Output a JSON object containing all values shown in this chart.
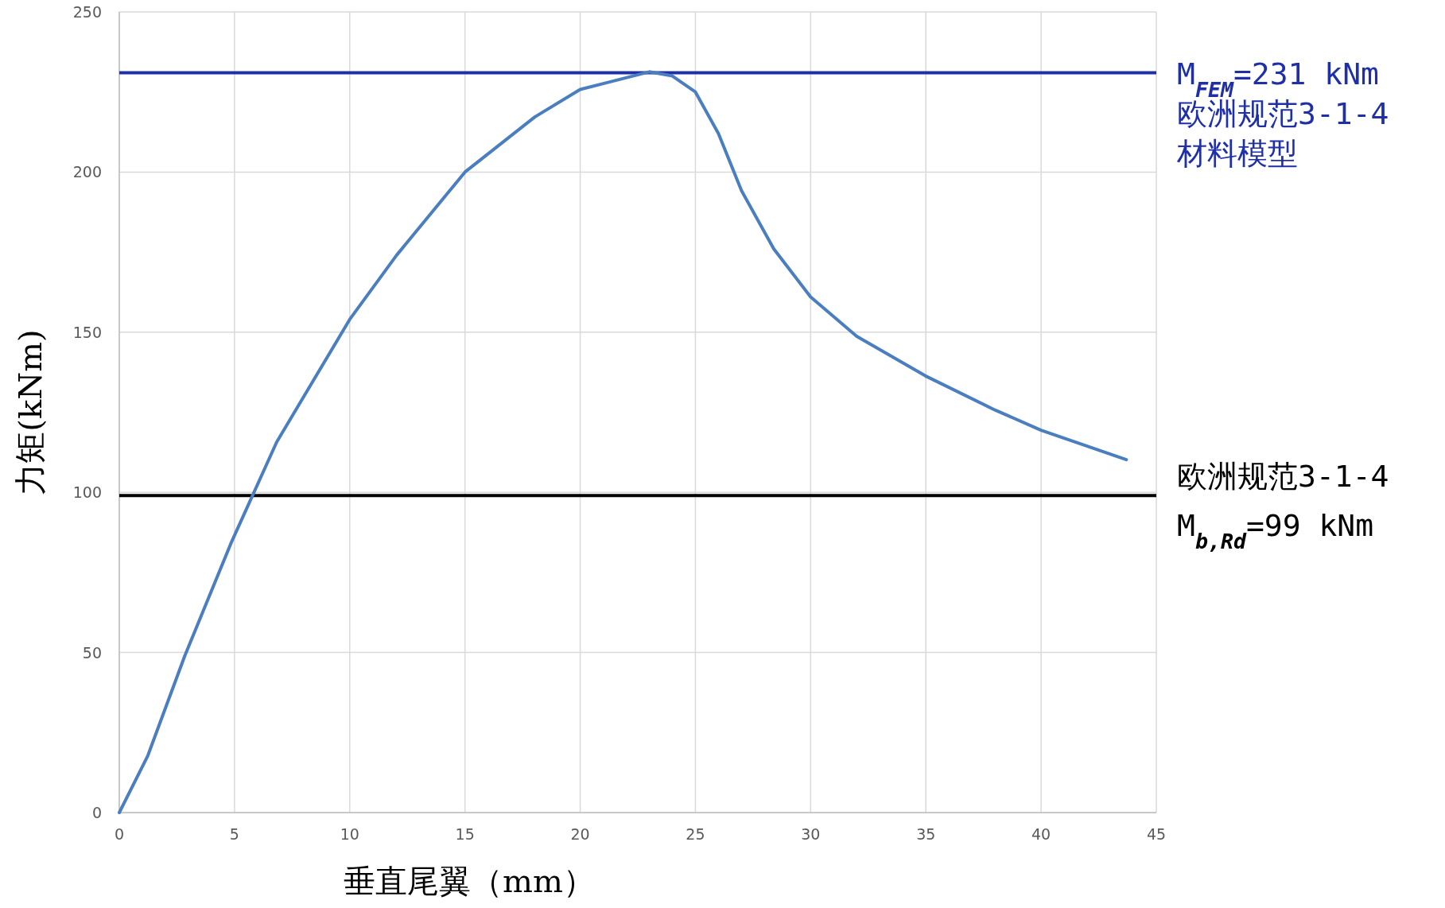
{
  "chart_data": {
    "type": "line",
    "xlabel": "垂直尾翼（mm）",
    "ylabel": "力矩(kNm)",
    "x": [
      0,
      1.24,
      2.84,
      4.84,
      6.83,
      10,
      12.03,
      15,
      18.03,
      20,
      23,
      24,
      25,
      26,
      27,
      28.4,
      30,
      32,
      34.97,
      38,
      40,
      43.7
    ],
    "series": [
      {
        "color": "#4a7ebf",
        "values": [
          0,
          17.8,
          48.9,
          84,
          115.7,
          154,
          174,
          200,
          217.2,
          225.8,
          231.3,
          230,
          225,
          212,
          194.2,
          176,
          161,
          148.7,
          136.4,
          125.7,
          119.4,
          110.2
        ]
      }
    ],
    "xlim": [
      0,
      45
    ],
    "xticks": [
      0,
      5,
      10,
      15,
      20,
      25,
      30,
      35,
      40,
      45
    ],
    "ylim": [
      0,
      250
    ],
    "yticks": [
      0,
      50,
      100,
      150,
      200,
      250
    ],
    "grid": true,
    "marker": "none",
    "line_style": "solid",
    "ref_lines": [
      {
        "axis": "y",
        "value": 231,
        "label": "M$_{FEM}$=231 kNm\n欧洲规范3-1-4\n材料模型",
        "color": "#1f2fa8",
        "line_style": "solid"
      },
      {
        "axis": "y",
        "value": 99,
        "label": "欧洲规范3-1-4\nM$_{b,Rd}$=99 kNm",
        "color": "#000000",
        "line_style": "solid"
      }
    ]
  }
}
